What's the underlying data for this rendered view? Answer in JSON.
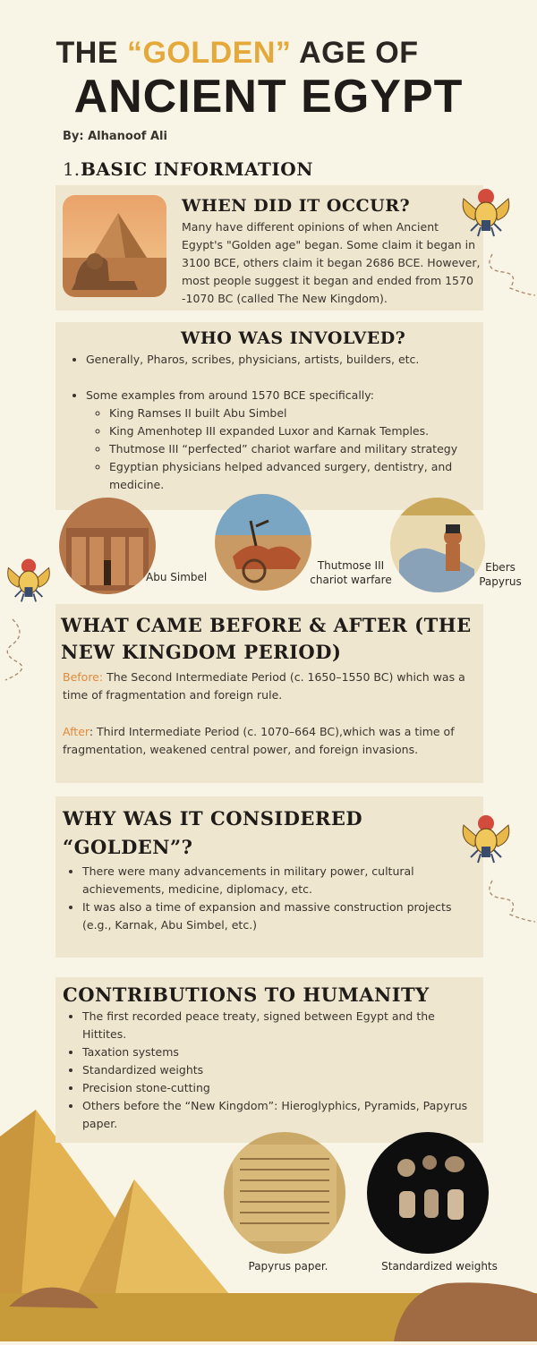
{
  "header": {
    "title_prefix": "THE ",
    "title_gold": "“GOLDEN”",
    "title_suffix": " AGE OF",
    "title_main": "ANCIENT EGYPT",
    "byline": "By: Alhanoof Ali"
  },
  "basic": {
    "number": "1.",
    "heading": "BASIC INFORMATION"
  },
  "when": {
    "heading": "WHEN DID IT OCCUR?",
    "text": "Many have different opinions of when  Ancient Egypt's \"Golden age\" began. Some claim it began in 3100 BCE, others claim it began 2686 BCE. However, most people suggest it began and ended from 1570 -1070 BC (called The New Kingdom)."
  },
  "who": {
    "heading": "WHO WAS INVOLVED?",
    "bullet1": "Generally, Pharos, scribes, physicians, artists, builders, etc.",
    "bullet2": "Some examples from around 1570 BCE specifically:",
    "sub": [
      "King Ramses II built Abu Simbel",
      "King Amenhotep III expanded Luxor and Karnak Temples.",
      "Thutmose III “perfected” chariot warfare and military strategy",
      "Egyptian physicians helped advanced surgery, dentistry, and medicine."
    ],
    "captions": {
      "abu": "Abu Simbel",
      "thutmose1": "Thutmose III",
      "thutmose2": "chariot warfare",
      "ebers1": "Ebers",
      "ebers2": "Papyrus"
    }
  },
  "before_after": {
    "heading1": "WHAT CAME BEFORE & AFTER (THE",
    "heading2": "NEW KINGDOM PERIOD)",
    "before_label": "Before:",
    "before_text": " The Second Intermediate Period (c. 1650–1550 BC) which was a time of fragmentation and foreign rule.",
    "after_label": "After",
    "after_text": ": Third Intermediate Period (c. 1070–664 BC),which was a time of fragmentation, weakened central power, and foreign invasions."
  },
  "golden": {
    "heading1": "WHY WAS IT CONSIDERED",
    "heading2": "“GOLDEN”?",
    "bullets": [
      " There were many advancements in military power, cultural achievements, medicine, diplomacy, etc.",
      "It was also a time of expansion and massive construction projects (e.g., Karnak, Abu Simbel, etc.)"
    ]
  },
  "contrib": {
    "heading": "CONTRIBUTIONS TO HUMANITY",
    "bullets": [
      "The first recorded peace treaty, signed between Egypt and the Hittites.",
      "Taxation systems",
      "Standardized weights",
      "Precision stone-cutting",
      "Others before the “New Kingdom”: Hieroglyphics, Pyramids, Papyrus paper."
    ],
    "cap_papyrus": "Papyrus paper.",
    "cap_weights": "Standardized weights"
  },
  "colors": {
    "background": "#f8f4e6",
    "panel": "#efe6cf",
    "gold_accent": "#e4a93a",
    "before_label": "#e08a3c",
    "sand": "#c79a3a"
  }
}
